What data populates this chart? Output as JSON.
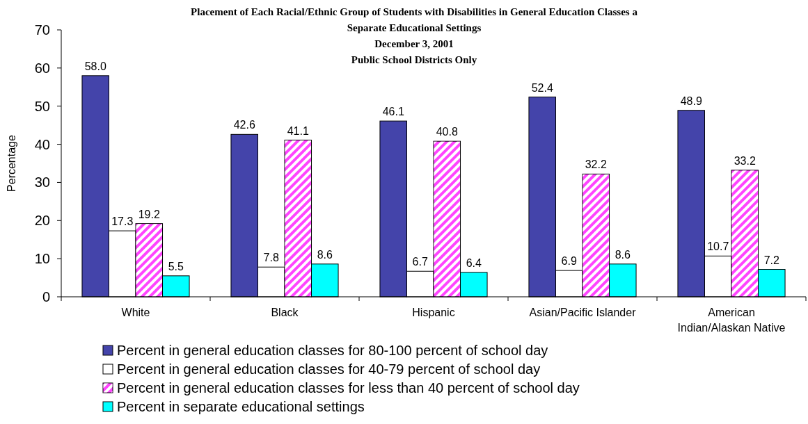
{
  "chart_data": {
    "type": "bar",
    "title": "Placement of Each Racial/Ethnic Group of Students with Disabilities in General Education Classes a\nSeparate Educational Settings",
    "subtitle": "December 3, 2001\nPublic School Districts Only",
    "ylabel": "Percentage",
    "categories": [
      "White",
      "Black",
      "Hispanic",
      "Asian/Pacific Islander",
      "American Indian/Alaskan Native"
    ],
    "series": [
      {
        "name": "Percent in general education classes for 80-100 percent of school day",
        "color": "#4444aa",
        "values": [
          58.0,
          42.6,
          46.1,
          52.4,
          48.9
        ],
        "value_labels": [
          "58.0",
          "42.6",
          "46.1",
          "52.4",
          "48.9"
        ]
      },
      {
        "name": "Percent in general education classes for 40-79 percent of school day",
        "color": "#ffffff",
        "values": [
          17.3,
          7.8,
          6.7,
          6.9,
          10.7
        ],
        "value_labels": [
          "17.3",
          "7.8",
          "6.7",
          "6.9",
          "10.7"
        ]
      },
      {
        "name": "Percent in general education classes for less than 40 percent of school day",
        "color": "#ff44ff",
        "values": [
          19.2,
          41.1,
          40.8,
          32.2,
          33.2
        ],
        "value_labels": [
          "19.2",
          "41.1",
          "40.8",
          "32.2",
          "33.2"
        ]
      },
      {
        "name": "Percent in separate educational settings",
        "color": "#00ffff",
        "values": [
          5.5,
          8.6,
          6.4,
          8.6,
          7.2
        ],
        "value_labels": [
          "5.5",
          "8.6",
          "6.4",
          "8.6",
          "7.2"
        ]
      }
    ],
    "ylim": [
      0,
      70
    ],
    "yticks": [
      0,
      10,
      20,
      30,
      40,
      50,
      60,
      70
    ],
    "legend": "bottom",
    "grid": false
  }
}
